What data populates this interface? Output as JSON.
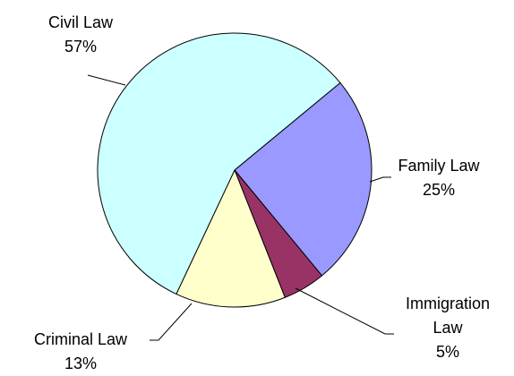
{
  "chart_data": {
    "type": "pie",
    "categories": [
      "Family Law",
      "Immigration Law",
      "Criminal Law",
      "Civil Law"
    ],
    "values": [
      25,
      5,
      13,
      57
    ],
    "value_labels": [
      "25%",
      "5%",
      "13%",
      "57%"
    ],
    "colors": [
      "#9999ff",
      "#993366",
      "#ffffcc",
      "#ccffff"
    ]
  }
}
